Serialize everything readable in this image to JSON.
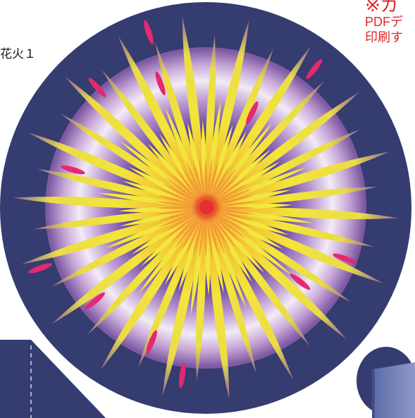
{
  "label": "花火１",
  "note": {
    "mark": "※ガ",
    "line1": "PDFデ",
    "line2": "印刷す"
  },
  "colors": {
    "background": "#ffffff",
    "disc": "#353c6f",
    "glow_center": "#3a1f8a",
    "glow_ring": "#f1e8f5",
    "ray_inner": "#f7a23b",
    "ray_mid": "#f1e83a",
    "ray_outer": "#7b5a9c",
    "spark": "#e5286f",
    "core": "#e2452f",
    "note_text": "#e0262b",
    "tab_left": "#353c6f",
    "tab_right": "#6f7ab3"
  },
  "icons": [
    "firework-burst-icon"
  ]
}
